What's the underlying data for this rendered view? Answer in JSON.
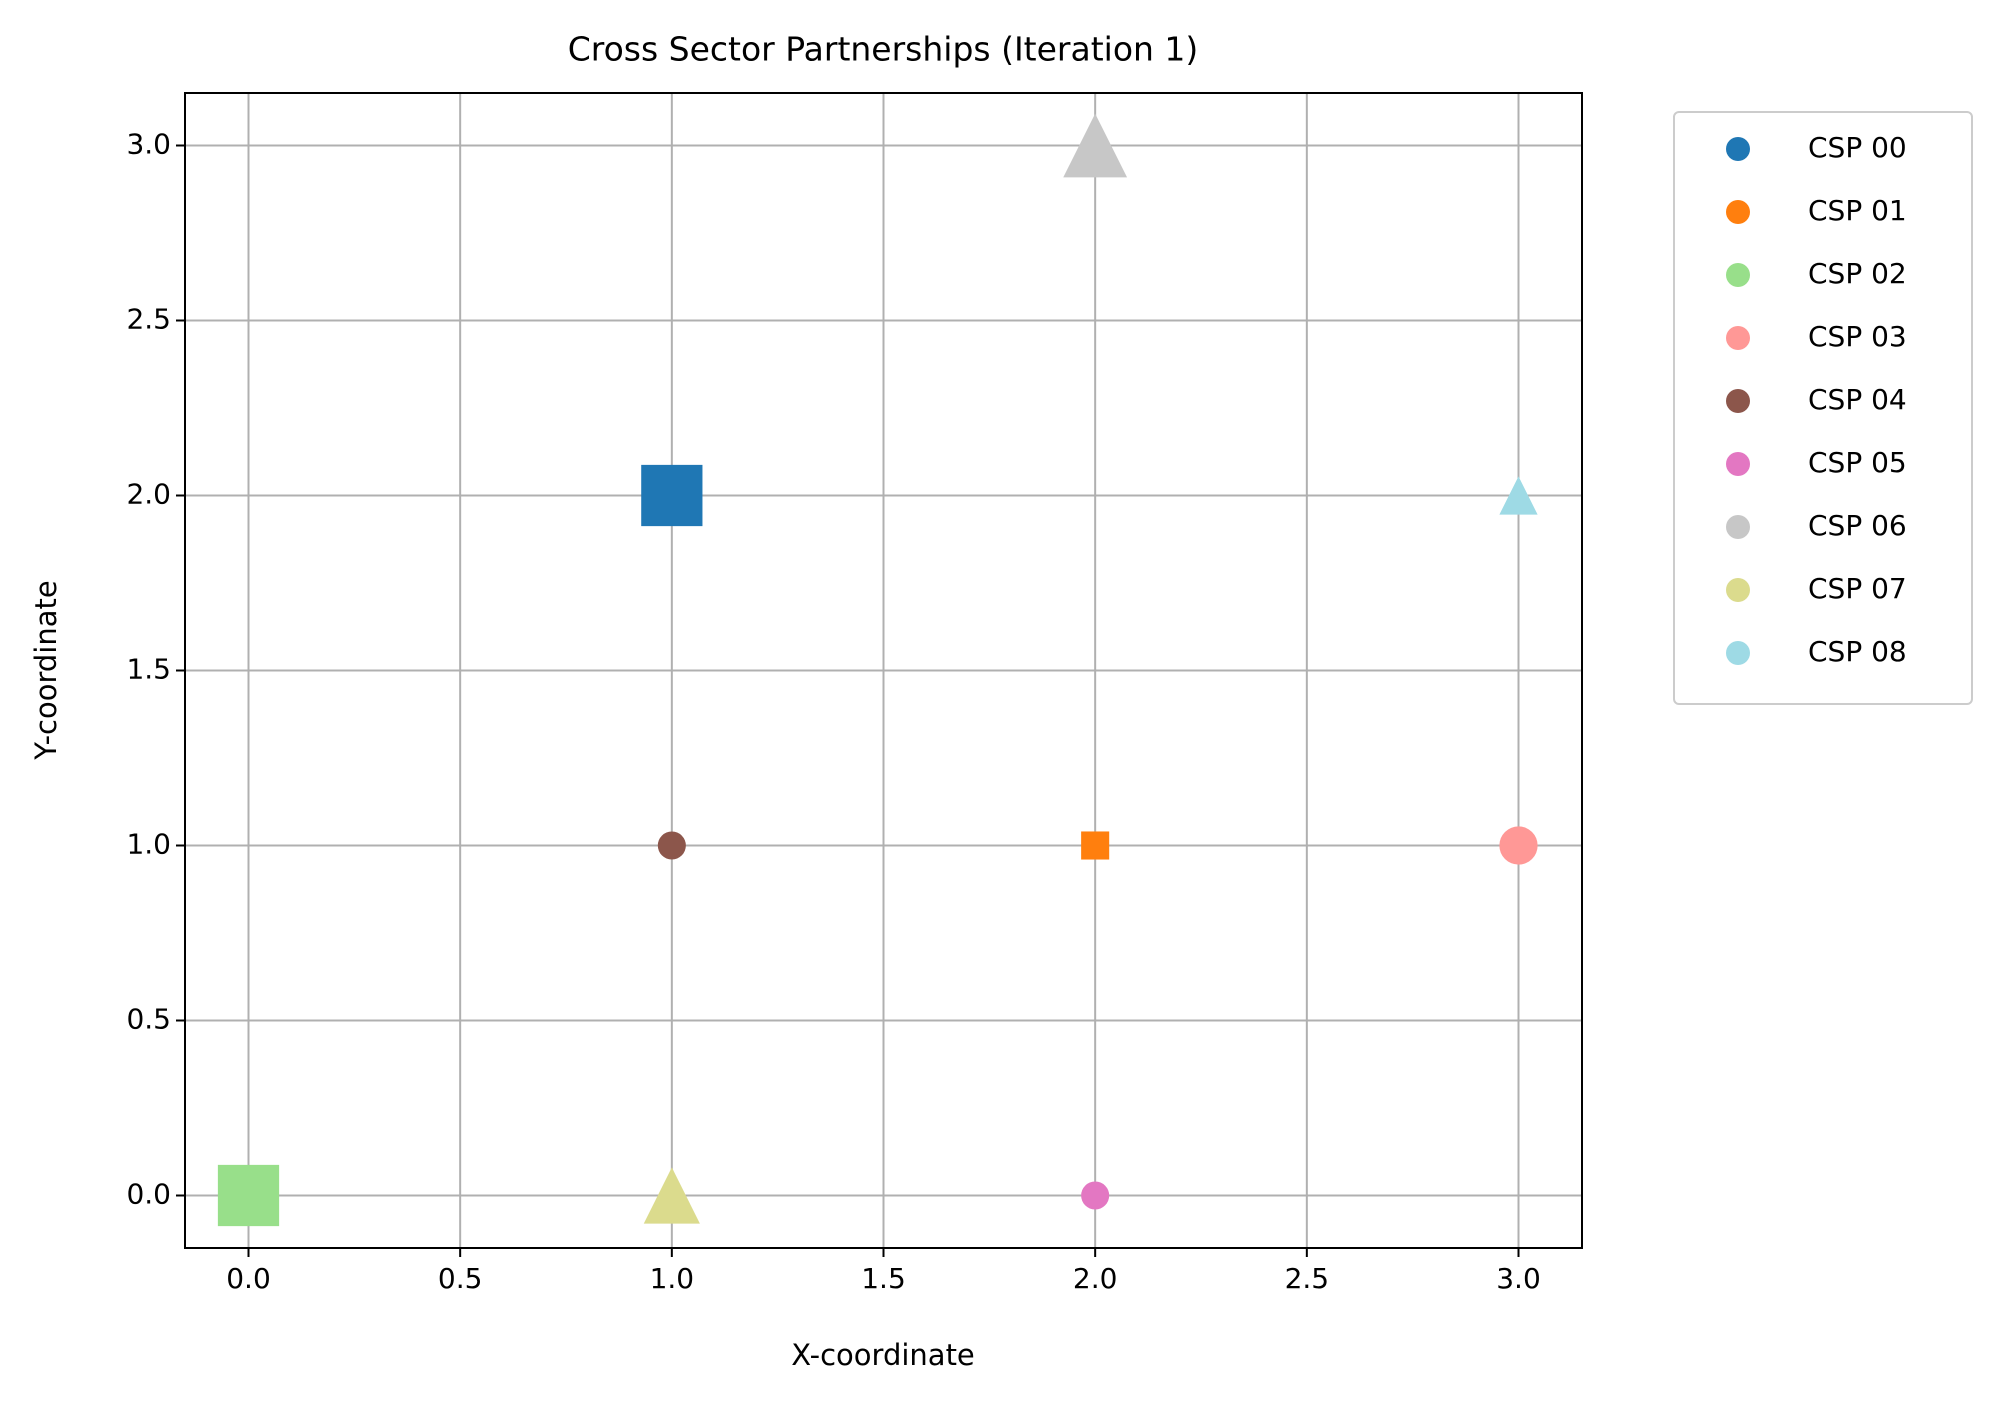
{
  "chart_data": {
    "type": "scatter",
    "title": "Cross Sector Partnerships (Iteration 1)",
    "x_label": "X-coordinate",
    "y_label": "Y-coordinate",
    "xlim": [
      -0.15,
      3.15
    ],
    "ylim": [
      -0.15,
      3.15
    ],
    "xticks": [
      {
        "value": 0,
        "label": "0.0"
      },
      {
        "value": 0.5,
        "label": "0.5"
      },
      {
        "value": 1,
        "label": "1.0"
      },
      {
        "value": 1.5,
        "label": "1.5"
      },
      {
        "value": 2,
        "label": "2.0"
      },
      {
        "value": 2.5,
        "label": "2.5"
      },
      {
        "value": 3,
        "label": "3.0"
      }
    ],
    "yticks": [
      {
        "value": 0,
        "label": "0.0"
      },
      {
        "value": 0.5,
        "label": "0.5"
      },
      {
        "value": 1,
        "label": "1.0"
      },
      {
        "value": 1.5,
        "label": "1.5"
      },
      {
        "value": 2,
        "label": "2.0"
      },
      {
        "value": 2.5,
        "label": "2.5"
      },
      {
        "value": 3,
        "label": "3.0"
      }
    ],
    "grid": true,
    "legend": "outside right",
    "series": [
      {
        "name": "CSP 00",
        "color": "#1f77b4",
        "marker": "square",
        "x": [
          1
        ],
        "values": [
          2
        ],
        "sizes": [
          48
        ]
      },
      {
        "name": "CSP 01",
        "color": "#ff7f0e",
        "marker": "square",
        "x": [
          2
        ],
        "values": [
          1
        ],
        "sizes": [
          22
        ]
      },
      {
        "name": "CSP 02",
        "color": "#98df8a",
        "marker": "square",
        "x": [
          0
        ],
        "values": [
          0
        ],
        "sizes": [
          48
        ]
      },
      {
        "name": "CSP 03",
        "color": "#ff9896",
        "marker": "circle",
        "x": [
          3
        ],
        "values": [
          1
        ],
        "sizes": [
          30
        ]
      },
      {
        "name": "CSP 04",
        "color": "#8c564b",
        "marker": "circle",
        "x": [
          1
        ],
        "values": [
          1
        ],
        "sizes": [
          22
        ]
      },
      {
        "name": "CSP 05",
        "color": "#e377c2",
        "marker": "circle",
        "x": [
          2
        ],
        "values": [
          0
        ],
        "sizes": [
          22
        ]
      },
      {
        "name": "CSP 06",
        "color": "#c7c7c7",
        "marker": "triangle",
        "x": [
          2
        ],
        "values": [
          3
        ],
        "sizes": [
          50
        ]
      },
      {
        "name": "CSP 07",
        "color": "#dbdb8d",
        "marker": "triangle",
        "x": [
          1
        ],
        "values": [
          0
        ],
        "sizes": [
          44
        ]
      },
      {
        "name": "CSP 08",
        "color": "#9edae5",
        "marker": "triangle",
        "x": [
          3
        ],
        "values": [
          2
        ],
        "sizes": [
          30
        ]
      }
    ]
  }
}
